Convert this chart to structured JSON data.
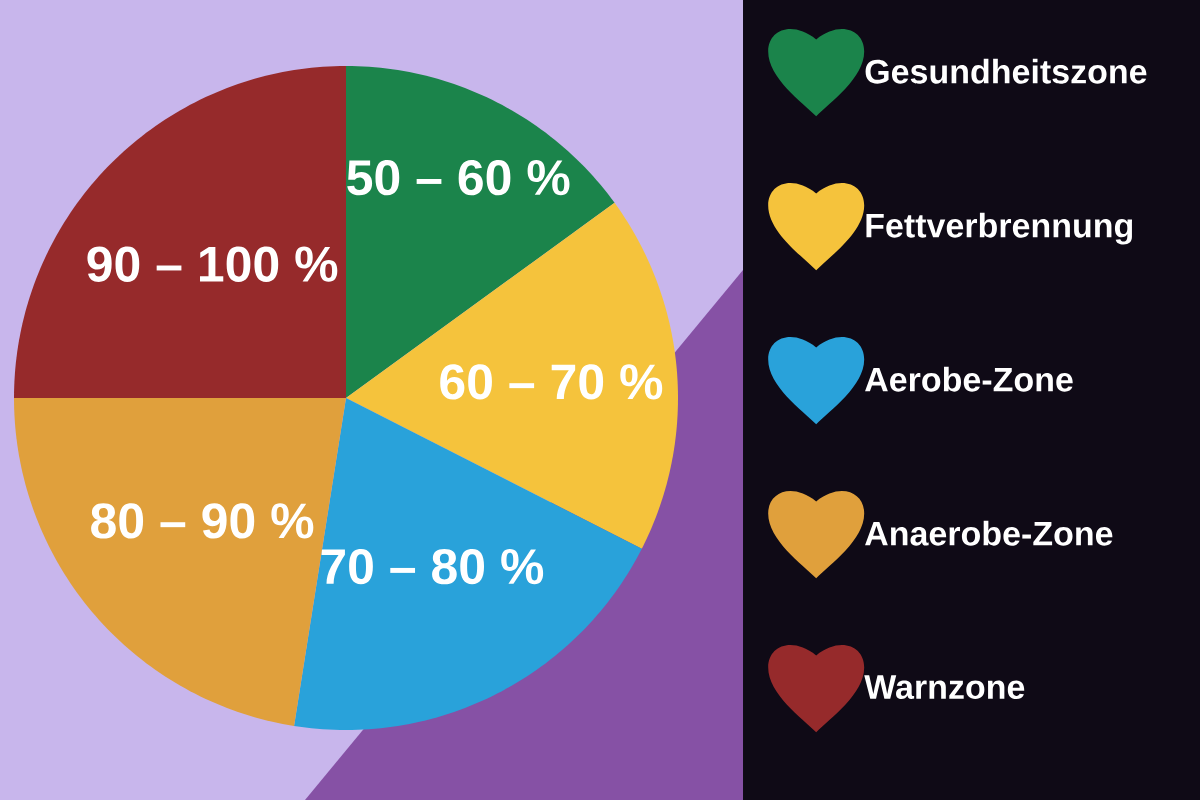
{
  "chart_data": {
    "type": "pie",
    "categories": [
      "Gesundheitszone",
      "Fettverbrennung",
      "Aerobe-Zone",
      "Anaerobe-Zone",
      "Warnzone"
    ],
    "values": [
      15,
      17.5,
      20,
      22.5,
      25
    ],
    "colors": [
      "#1b844b",
      "#f5c33c",
      "#29a2da",
      "#e0a03c",
      "#962a2b"
    ],
    "annotations": [
      "50 – 60 %",
      "60 – 70 %",
      "70 – 80 %",
      "80 – 90 %",
      "90 – 100 %"
    ],
    "legend": "right"
  }
}
